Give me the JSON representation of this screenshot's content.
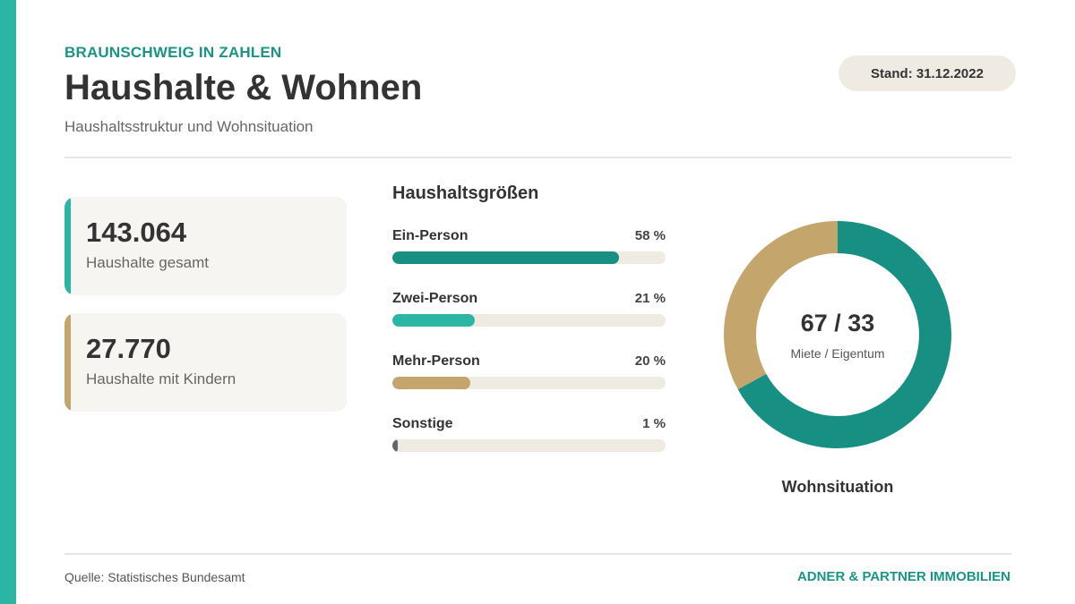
{
  "header": {
    "eyebrow": "BRAUNSCHWEIG IN ZAHLEN",
    "title": "Haushalte & Wohnen",
    "subtitle": "Haushaltsstruktur und Wohnsituation",
    "badge": "Stand: 31.12.2022"
  },
  "kpis": [
    {
      "value": "143.064",
      "label": "Haushalte gesamt",
      "color": "#2bb5a5"
    },
    {
      "value": "27.770",
      "label": "Haushalte mit Kindern",
      "color": "#c4a56b"
    }
  ],
  "colors": {
    "accent": "#2bb5a5",
    "teal_dark": "#178f82",
    "gold": "#c4a56b",
    "track": "#efebe3",
    "gray": "#666666"
  },
  "chart_data": [
    {
      "type": "bar",
      "orientation": "horizontal",
      "title": "Haushaltsgrößen",
      "categories": [
        "Ein-Person",
        "Zwei-Person",
        "Mehr-Person",
        "Sonstige"
      ],
      "values": [
        58,
        21,
        20,
        1
      ],
      "value_labels": [
        "58 %",
        "21 %",
        "20 %",
        "1 %"
      ],
      "unit": "%",
      "xlim": [
        0,
        70
      ],
      "colors": [
        "#178f82",
        "#2bb5a5",
        "#c4a56b",
        "#666666"
      ]
    },
    {
      "type": "pie",
      "donut": true,
      "title": "Wohnsituation",
      "center_value": "67 / 33",
      "center_label": "Miete / Eigentum",
      "categories": [
        "Miete",
        "Eigentum"
      ],
      "values": [
        67,
        33
      ],
      "colors": [
        "#178f82",
        "#c4a56b"
      ]
    }
  ],
  "footer": {
    "source": "Quelle: Statistisches Bundesamt",
    "brand": "ADNER & PARTNER IMMOBILIEN"
  }
}
